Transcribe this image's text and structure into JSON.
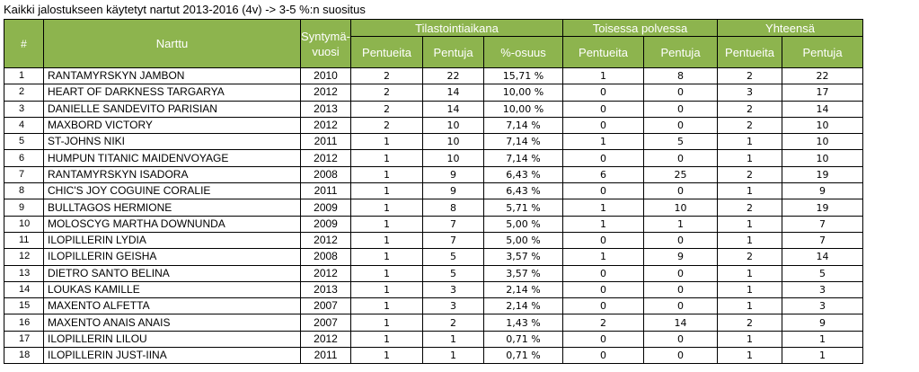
{
  "title": "Kaikki jalostukseen käytetyt nartut 2013-2016 (4v) -> 3-5 %:n suositus",
  "header": {
    "num": "#",
    "name": "Narttu",
    "year": "Syntymä-\nvuosi",
    "group_stats": "Tilastointiaikana",
    "group_second": "Toisessa polvessa",
    "group_total": "Yhteensä",
    "litters": "Pentueita",
    "pups": "Pentuja",
    "share": "%-osuus"
  },
  "rows": [
    {
      "num": "1",
      "name": "RANTAMYRSKYN JAMBON",
      "year": "2010",
      "s_litters": "2",
      "s_pups": "22",
      "share": "15,71 %",
      "g_litters": "1",
      "g_pups": "8",
      "t_litters": "2",
      "t_pups": "22"
    },
    {
      "num": "2",
      "name": "HEART OF DARKNESS TARGARYA",
      "year": "2012",
      "s_litters": "2",
      "s_pups": "14",
      "share": "10,00 %",
      "g_litters": "0",
      "g_pups": "0",
      "t_litters": "3",
      "t_pups": "17"
    },
    {
      "num": "3",
      "name": "DANIELLE SANDEVITO PARISIAN",
      "year": "2013",
      "s_litters": "2",
      "s_pups": "14",
      "share": "10,00 %",
      "g_litters": "0",
      "g_pups": "0",
      "t_litters": "2",
      "t_pups": "14"
    },
    {
      "num": "4",
      "name": "MAXBORD VICTORY",
      "year": "2012",
      "s_litters": "2",
      "s_pups": "10",
      "share": "7,14 %",
      "g_litters": "0",
      "g_pups": "0",
      "t_litters": "2",
      "t_pups": "10"
    },
    {
      "num": "5",
      "name": "ST-JOHNS NIKI",
      "year": "2011",
      "s_litters": "1",
      "s_pups": "10",
      "share": "7,14 %",
      "g_litters": "1",
      "g_pups": "5",
      "t_litters": "1",
      "t_pups": "10"
    },
    {
      "num": "6",
      "name": "HUMPUN TITANIC MAIDENVOYAGE",
      "year": "2012",
      "s_litters": "1",
      "s_pups": "10",
      "share": "7,14 %",
      "g_litters": "0",
      "g_pups": "0",
      "t_litters": "1",
      "t_pups": "10"
    },
    {
      "num": "7",
      "name": "RANTAMYRSKYN ISADORA",
      "year": "2008",
      "s_litters": "1",
      "s_pups": "9",
      "share": "6,43 %",
      "g_litters": "6",
      "g_pups": "25",
      "t_litters": "2",
      "t_pups": "19"
    },
    {
      "num": "8",
      "name": "CHIC'S JOY COGUINE CORALIE",
      "year": "2011",
      "s_litters": "1",
      "s_pups": "9",
      "share": "6,43 %",
      "g_litters": "0",
      "g_pups": "0",
      "t_litters": "1",
      "t_pups": "9"
    },
    {
      "num": "9",
      "name": "BULLTAGOS HERMIONE",
      "year": "2009",
      "s_litters": "1",
      "s_pups": "8",
      "share": "5,71 %",
      "g_litters": "1",
      "g_pups": "10",
      "t_litters": "2",
      "t_pups": "19"
    },
    {
      "num": "10",
      "name": "MOLOSCYG MARTHA DOWNUNDA",
      "year": "2009",
      "s_litters": "1",
      "s_pups": "7",
      "share": "5,00 %",
      "g_litters": "1",
      "g_pups": "1",
      "t_litters": "1",
      "t_pups": "7"
    },
    {
      "num": "11",
      "name": "ILOPILLERIN LYDIA",
      "year": "2012",
      "s_litters": "1",
      "s_pups": "7",
      "share": "5,00 %",
      "g_litters": "0",
      "g_pups": "0",
      "t_litters": "1",
      "t_pups": "7"
    },
    {
      "num": "12",
      "name": "ILOPILLERIN GEISHA",
      "year": "2008",
      "s_litters": "1",
      "s_pups": "5",
      "share": "3,57 %",
      "g_litters": "1",
      "g_pups": "9",
      "t_litters": "2",
      "t_pups": "14"
    },
    {
      "num": "13",
      "name": "DIETRO SANTO BELINA",
      "year": "2012",
      "s_litters": "1",
      "s_pups": "5",
      "share": "3,57 %",
      "g_litters": "0",
      "g_pups": "0",
      "t_litters": "1",
      "t_pups": "5"
    },
    {
      "num": "14",
      "name": "LOUKAS KAMILLE",
      "year": "2013",
      "s_litters": "1",
      "s_pups": "3",
      "share": "2,14 %",
      "g_litters": "0",
      "g_pups": "0",
      "t_litters": "1",
      "t_pups": "3"
    },
    {
      "num": "15",
      "name": "MAXENTO ALFETTA",
      "year": "2007",
      "s_litters": "1",
      "s_pups": "3",
      "share": "2,14 %",
      "g_litters": "0",
      "g_pups": "0",
      "t_litters": "1",
      "t_pups": "3"
    },
    {
      "num": "16",
      "name": "MAXENTO ANAIS ANAIS",
      "year": "2007",
      "s_litters": "1",
      "s_pups": "2",
      "share": "1,43 %",
      "g_litters": "2",
      "g_pups": "14",
      "t_litters": "2",
      "t_pups": "9"
    },
    {
      "num": "17",
      "name": "ILOPILLERIN LILOU",
      "year": "2012",
      "s_litters": "1",
      "s_pups": "1",
      "share": "0,71 %",
      "g_litters": "0",
      "g_pups": "0",
      "t_litters": "1",
      "t_pups": "1"
    },
    {
      "num": "18",
      "name": "ILOPILLERIN JUST-IINA",
      "year": "2011",
      "s_litters": "1",
      "s_pups": "1",
      "share": "0,71 %",
      "g_litters": "0",
      "g_pups": "0",
      "t_litters": "1",
      "t_pups": "1"
    }
  ],
  "colors": {
    "header_bg": "#8db44e",
    "header_text": "#ffffff"
  }
}
